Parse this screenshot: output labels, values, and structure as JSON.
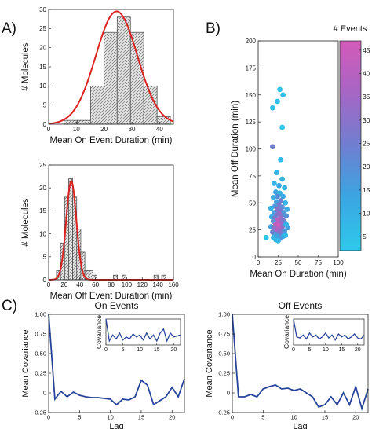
{
  "panel_labels": {
    "A": "A)",
    "B": "B)",
    "C": "C)"
  },
  "colorbar": {
    "title": "# Events",
    "ticks": [
      5,
      10,
      15,
      20,
      25,
      30,
      35,
      40,
      45
    ],
    "range": [
      2,
      47
    ],
    "colors": [
      "#2ec9ea",
      "#3aa6e2",
      "#6f7fd0",
      "#a566c4",
      "#d45ab9"
    ]
  },
  "chart_data": [
    {
      "id": "on_hist",
      "type": "bar",
      "xlabel": "Mean On Event Duration (min)",
      "ylabel": "# Molecules",
      "xlim": [
        0,
        45
      ],
      "ylim": [
        0,
        30
      ],
      "xticks": [
        0,
        10,
        20,
        30,
        40
      ],
      "yticks": [
        0,
        5,
        10,
        15,
        20,
        25,
        30
      ],
      "bin_width": 4.8,
      "bins": [
        {
          "start": 5.5,
          "value": 1
        },
        {
          "start": 10.3,
          "value": 1
        },
        {
          "start": 15.1,
          "value": 10
        },
        {
          "start": 19.9,
          "value": 24
        },
        {
          "start": 24.7,
          "value": 28
        },
        {
          "start": 29.5,
          "value": 24
        },
        {
          "start": 34.3,
          "value": 10
        },
        {
          "start": 39.1,
          "value": 2
        }
      ],
      "fit": {
        "type": "gaussian",
        "amplitude": 29.5,
        "mean": 24.5,
        "sd": 7.5,
        "color": "#dd2222"
      }
    },
    {
      "id": "off_hist",
      "type": "bar",
      "xlabel": "Mean Off Event Duration (min)",
      "ylabel": "# Molecules",
      "xlim": [
        0,
        160
      ],
      "ylim": [
        0,
        25
      ],
      "xticks": [
        0,
        20,
        40,
        60,
        80,
        100,
        120,
        140,
        160
      ],
      "yticks": [
        0,
        5,
        10,
        15,
        20,
        25
      ],
      "bin_width": 5.2,
      "bins": [
        {
          "start": 10,
          "value": 2
        },
        {
          "start": 15.2,
          "value": 8
        },
        {
          "start": 20.4,
          "value": 18
        },
        {
          "start": 25.6,
          "value": 22
        },
        {
          "start": 30.8,
          "value": 18
        },
        {
          "start": 36,
          "value": 11
        },
        {
          "start": 41.2,
          "value": 6
        },
        {
          "start": 46.4,
          "value": 2
        },
        {
          "start": 51.6,
          "value": 2
        },
        {
          "start": 56.8,
          "value": 1
        },
        {
          "start": 83,
          "value": 1
        },
        {
          "start": 94,
          "value": 1
        },
        {
          "start": 135,
          "value": 1
        },
        {
          "start": 145,
          "value": 1
        }
      ],
      "fit": {
        "type": "gaussian",
        "amplitude": 21.5,
        "mean": 29,
        "sd": 6.5,
        "color": "#dd2222"
      }
    },
    {
      "id": "scatter",
      "type": "scatter",
      "xlabel": "Mean On Duration (min)",
      "ylabel": "Mean Off Duration (min)",
      "xlim": [
        0,
        100
      ],
      "ylim": [
        0,
        200
      ],
      "xticks": [
        0,
        25,
        50,
        75,
        100
      ],
      "yticks": [
        0,
        25,
        50,
        75,
        100,
        125,
        150,
        175,
        200
      ],
      "points": [
        {
          "x": 27,
          "y": 155,
          "events": 5
        },
        {
          "x": 31,
          "y": 150,
          "events": 5
        },
        {
          "x": 24,
          "y": 144,
          "events": 5
        },
        {
          "x": 18,
          "y": 138,
          "events": 5
        },
        {
          "x": 30,
          "y": 120,
          "events": 5
        },
        {
          "x": 18,
          "y": 102,
          "events": 25
        },
        {
          "x": 28,
          "y": 90,
          "events": 5
        },
        {
          "x": 23,
          "y": 78,
          "events": 8
        },
        {
          "x": 30,
          "y": 72,
          "events": 10
        },
        {
          "x": 20,
          "y": 68,
          "events": 8
        },
        {
          "x": 26,
          "y": 66,
          "events": 12
        },
        {
          "x": 33,
          "y": 64,
          "events": 8
        },
        {
          "x": 22,
          "y": 60,
          "events": 15
        },
        {
          "x": 27,
          "y": 59,
          "events": 10
        },
        {
          "x": 24,
          "y": 56,
          "events": 20
        },
        {
          "x": 31,
          "y": 56,
          "events": 12
        },
        {
          "x": 19,
          "y": 55,
          "events": 10
        },
        {
          "x": 28,
          "y": 52,
          "events": 25
        },
        {
          "x": 23,
          "y": 51,
          "events": 15
        },
        {
          "x": 34,
          "y": 50,
          "events": 10
        },
        {
          "x": 26,
          "y": 48,
          "events": 28
        },
        {
          "x": 21,
          "y": 47,
          "events": 18
        },
        {
          "x": 30,
          "y": 46,
          "events": 20
        },
        {
          "x": 16,
          "y": 45,
          "events": 10
        },
        {
          "x": 36,
          "y": 44,
          "events": 12
        },
        {
          "x": 24,
          "y": 44,
          "events": 30
        },
        {
          "x": 28,
          "y": 43,
          "events": 25
        },
        {
          "x": 32,
          "y": 41,
          "events": 18
        },
        {
          "x": 20,
          "y": 41,
          "events": 15
        },
        {
          "x": 26,
          "y": 40,
          "events": 35
        },
        {
          "x": 23,
          "y": 39,
          "events": 28
        },
        {
          "x": 29,
          "y": 38,
          "events": 30
        },
        {
          "x": 35,
          "y": 38,
          "events": 20
        },
        {
          "x": 17,
          "y": 37,
          "events": 12
        },
        {
          "x": 21,
          "y": 36,
          "events": 25
        },
        {
          "x": 27,
          "y": 35,
          "events": 38
        },
        {
          "x": 31,
          "y": 34,
          "events": 28
        },
        {
          "x": 24,
          "y": 34,
          "events": 40
        },
        {
          "x": 19,
          "y": 33,
          "events": 20
        },
        {
          "x": 33,
          "y": 32,
          "events": 22
        },
        {
          "x": 28,
          "y": 31,
          "events": 35
        },
        {
          "x": 22,
          "y": 30,
          "events": 42
        },
        {
          "x": 25,
          "y": 29,
          "events": 45
        },
        {
          "x": 30,
          "y": 28,
          "events": 32
        },
        {
          "x": 16,
          "y": 28,
          "events": 15
        },
        {
          "x": 37,
          "y": 27,
          "events": 15
        },
        {
          "x": 20,
          "y": 27,
          "events": 30
        },
        {
          "x": 26,
          "y": 26,
          "events": 40
        },
        {
          "x": 23,
          "y": 25,
          "events": 38
        },
        {
          "x": 29,
          "y": 24,
          "events": 30
        },
        {
          "x": 33,
          "y": 24,
          "events": 18
        },
        {
          "x": 18,
          "y": 23,
          "events": 25
        },
        {
          "x": 25,
          "y": 22,
          "events": 30
        },
        {
          "x": 21,
          "y": 21,
          "events": 20
        },
        {
          "x": 28,
          "y": 20,
          "events": 25
        },
        {
          "x": 24,
          "y": 19,
          "events": 15
        },
        {
          "x": 31,
          "y": 19,
          "events": 12
        },
        {
          "x": 27,
          "y": 17,
          "events": 18
        },
        {
          "x": 22,
          "y": 16,
          "events": 10
        },
        {
          "x": 19,
          "y": 18,
          "events": 8
        },
        {
          "x": 34,
          "y": 20,
          "events": 8
        },
        {
          "x": 10,
          "y": 18,
          "events": 5
        },
        {
          "x": 35,
          "y": 30,
          "events": 10
        },
        {
          "x": 25,
          "y": 15,
          "events": 8
        }
      ]
    },
    {
      "id": "on_cov",
      "type": "line",
      "title": "On Events",
      "xlabel": "Lag",
      "ylabel": "Mean Covariance",
      "xlim": [
        0,
        22
      ],
      "ylim": [
        -0.25,
        1.0
      ],
      "xticks": [
        0,
        5,
        10,
        15,
        20
      ],
      "yticks": [
        -0.25,
        0,
        0.25,
        0.5,
        0.75,
        1.0
      ],
      "ytick_labels": [
        "-0.25",
        "0",
        "0.25",
        "0.50",
        "0.75",
        "1.00"
      ],
      "color": "#27449a",
      "x": [
        0,
        1,
        2,
        3,
        4,
        5,
        6,
        7,
        8,
        9,
        10,
        11,
        12,
        13,
        14,
        15,
        16,
        17,
        18,
        19,
        20,
        21,
        22
      ],
      "y": [
        1.0,
        -0.08,
        0.02,
        -0.05,
        0.01,
        -0.03,
        -0.05,
        -0.06,
        -0.06,
        -0.07,
        -0.08,
        -0.15,
        -0.08,
        -0.09,
        -0.05,
        0.16,
        0.1,
        -0.15,
        -0.1,
        -0.05,
        0.07,
        -0.05,
        0.18
      ],
      "inset": {
        "xlabel": "Lag",
        "ylabel": "Covariance",
        "xlim": [
          0,
          22
        ],
        "ylim": [
          -0.3,
          1.0
        ],
        "xticks": [
          0,
          5,
          10,
          15,
          20
        ],
        "x": [
          0,
          1,
          2,
          3,
          4,
          5,
          6,
          7,
          8,
          9,
          10,
          11,
          12,
          13,
          14,
          15,
          16,
          17,
          18,
          19,
          20,
          21,
          22
        ],
        "y": [
          1.0,
          -0.1,
          0.2,
          0.0,
          0.3,
          -0.05,
          0.1,
          0.0,
          0.25,
          0.1,
          0.2,
          -0.05,
          0.3,
          0.0,
          0.2,
          -0.1,
          0.3,
          0.5,
          -0.1,
          0.3,
          0.1,
          0.15,
          0.2
        ]
      }
    },
    {
      "id": "off_cov",
      "type": "line",
      "title": "Off Events",
      "xlabel": "Lag",
      "ylabel": "Mean Covariance",
      "xlim": [
        0,
        22
      ],
      "ylim": [
        -0.25,
        1.0
      ],
      "xticks": [
        0,
        5,
        10,
        15,
        20
      ],
      "yticks": [
        -0.25,
        0,
        0.25,
        0.5,
        0.75,
        1.0
      ],
      "ytick_labels": [
        "-0.25",
        "0",
        "0.25",
        "0.50",
        "0.75",
        "1.00"
      ],
      "color": "#27449a",
      "x": [
        0,
        1,
        2,
        3,
        4,
        5,
        6,
        7,
        8,
        9,
        10,
        11,
        12,
        13,
        14,
        15,
        16,
        17,
        18,
        19,
        20,
        21,
        22
      ],
      "y": [
        1.0,
        -0.05,
        -0.05,
        -0.02,
        -0.05,
        0.05,
        0.08,
        0.1,
        0.05,
        0.06,
        0.03,
        0.05,
        0.0,
        -0.05,
        -0.18,
        -0.15,
        -0.05,
        -0.15,
        0.0,
        -0.15,
        0.08,
        -0.2,
        0.05
      ],
      "inset": {
        "xlabel": "Lag",
        "ylabel": "Covariance",
        "xlim": [
          0,
          22
        ],
        "ylim": [
          -0.3,
          1.0
        ],
        "xticks": [
          0,
          5,
          10,
          15,
          20
        ],
        "x": [
          0,
          1,
          2,
          3,
          4,
          5,
          6,
          7,
          8,
          9,
          10,
          11,
          12,
          13,
          14,
          15,
          16,
          17,
          18,
          19,
          20,
          21,
          22
        ],
        "y": [
          1.0,
          0.1,
          0.05,
          0.2,
          0.0,
          0.3,
          0.1,
          0.2,
          0.0,
          0.1,
          0.3,
          0.05,
          0.2,
          -0.05,
          0.25,
          0.1,
          0.2,
          0.0,
          0.1,
          0.25,
          0.05,
          0.0,
          0.2
        ]
      }
    }
  ]
}
